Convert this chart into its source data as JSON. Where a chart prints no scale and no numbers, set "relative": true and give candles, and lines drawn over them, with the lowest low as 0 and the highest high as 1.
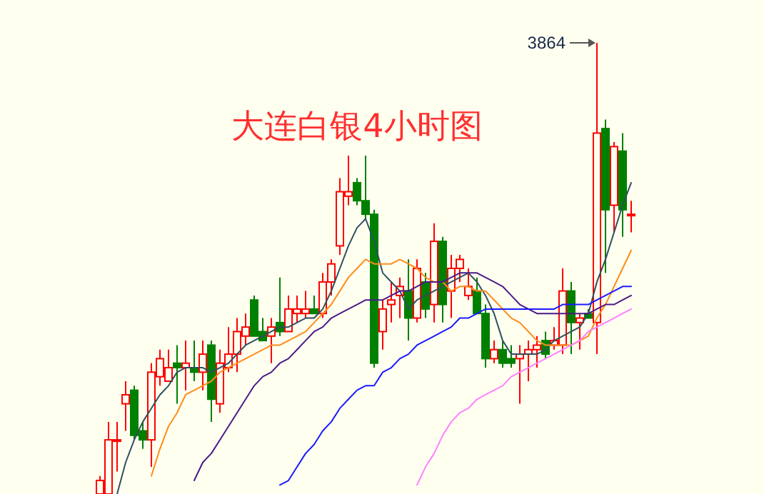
{
  "chart_data": {
    "type": "candlestick",
    "title": "大连白银4小时图",
    "relative": true,
    "categories": [
      null,
      null,
      null,
      null,
      null,
      null,
      null,
      null,
      null,
      null,
      null,
      null,
      null,
      null,
      null,
      null,
      null,
      null,
      null,
      null,
      null,
      null,
      null,
      null,
      null,
      null,
      null,
      null,
      null,
      null,
      null,
      null,
      null,
      null,
      null,
      null,
      null,
      null,
      null,
      null,
      null,
      null,
      null,
      null,
      null,
      null,
      null,
      null,
      null,
      null,
      null,
      null,
      null,
      null,
      null,
      null,
      null,
      null,
      null,
      null,
      null,
      null,
      null
    ],
    "ohlc": [
      [
        0,
        0.04,
        0,
        0.03
      ],
      [
        0,
        0.16,
        0,
        0.12
      ],
      [
        0.12,
        0.16,
        0.05,
        0.12
      ],
      [
        0.2,
        0.25,
        0.14,
        0.22
      ],
      [
        0.23,
        0.24,
        0.12,
        0.13
      ],
      [
        0.14,
        0.16,
        0.1,
        0.12
      ],
      [
        0.12,
        0.29,
        0.06,
        0.27
      ],
      [
        0.26,
        0.32,
        0.24,
        0.3
      ],
      [
        0.25,
        0.32,
        0.25,
        0.28
      ],
      [
        0.29,
        0.33,
        0.2,
        0.28
      ],
      [
        0.28,
        0.34,
        0.23,
        0.29
      ],
      [
        0.28,
        0.34,
        0.25,
        0.27
      ],
      [
        0.27,
        0.34,
        0.23,
        0.31
      ],
      [
        0.33,
        0.34,
        0.16,
        0.21
      ],
      [
        0.2,
        0.32,
        0.18,
        0.29
      ],
      [
        0.28,
        0.37,
        0.27,
        0.31
      ],
      [
        0.31,
        0.39,
        0.27,
        0.36
      ],
      [
        0.35,
        0.4,
        0.33,
        0.37
      ],
      [
        0.43,
        0.44,
        0.35,
        0.35
      ],
      [
        0.36,
        0.39,
        0.34,
        0.34
      ],
      [
        0.35,
        0.39,
        0.29,
        0.37
      ],
      [
        0.38,
        0.48,
        0.35,
        0.36
      ],
      [
        0.36,
        0.44,
        0.36,
        0.41
      ],
      [
        0.4,
        0.44,
        0.38,
        0.41
      ],
      [
        0.4,
        0.45,
        0.39,
        0.41
      ],
      [
        0.41,
        0.44,
        0.4,
        0.4
      ],
      [
        0.4,
        0.49,
        0.39,
        0.47
      ],
      [
        0.47,
        0.52,
        0.44,
        0.51
      ],
      [
        0.55,
        0.7,
        0.53,
        0.67
      ],
      [
        0.66,
        0.75,
        0.64,
        0.67
      ],
      [
        0.69,
        0.7,
        0.64,
        0.65
      ],
      [
        0.65,
        0.75,
        0.61,
        0.62
      ],
      [
        0.62,
        0.63,
        0.28,
        0.29
      ],
      [
        0.36,
        0.43,
        0.32,
        0.41
      ],
      [
        0.42,
        0.47,
        0.38,
        0.43
      ],
      [
        0.44,
        0.48,
        0.39,
        0.46
      ],
      [
        0.45,
        0.52,
        0.34,
        0.39
      ],
      [
        0.39,
        0.52,
        0.38,
        0.5
      ],
      [
        0.47,
        0.49,
        0.39,
        0.41
      ],
      [
        0.42,
        0.6,
        0.38,
        0.56
      ],
      [
        0.56,
        0.57,
        0.38,
        0.42
      ],
      [
        0.45,
        0.53,
        0.39,
        0.5
      ],
      [
        0.5,
        0.53,
        0.47,
        0.52
      ],
      [
        0.44,
        0.5,
        0.43,
        0.46
      ],
      [
        0.45,
        0.48,
        0.4,
        0.4
      ],
      [
        0.4,
        0.42,
        0.28,
        0.3
      ],
      [
        0.3,
        0.34,
        0.29,
        0.32
      ],
      [
        0.32,
        0.34,
        0.28,
        0.29
      ],
      [
        0.3,
        0.33,
        0.28,
        0.29
      ],
      [
        0.3,
        0.33,
        0.2,
        0.31
      ],
      [
        0.31,
        0.34,
        0.25,
        0.32
      ],
      [
        0.32,
        0.35,
        0.28,
        0.33
      ],
      [
        0.34,
        0.36,
        0.3,
        0.31
      ],
      [
        0.33,
        0.37,
        0.32,
        0.34
      ],
      [
        0.33,
        0.5,
        0.31,
        0.45
      ],
      [
        0.45,
        0.47,
        0.31,
        0.38
      ],
      [
        0.38,
        0.4,
        0.32,
        0.39
      ],
      [
        0.4,
        0.41,
        0.39,
        0.39
      ],
      [
        0.38,
        1,
        0.31,
        0.8
      ],
      [
        0.81,
        0.83,
        0.49,
        0.63
      ],
      [
        0.64,
        0.78,
        0.58,
        0.77
      ],
      [
        0.76,
        0.8,
        0.57,
        0.63
      ],
      [
        0.62,
        0.65,
        0.58,
        0.62
      ]
    ],
    "series": [
      {
        "type": "line",
        "color": "#2f4f5f",
        "values": [
          null,
          null,
          0,
          0.07,
          0.12,
          0.16,
          0.19,
          0.22,
          0.24,
          0.27,
          0.28,
          0.28,
          0.28,
          0.27,
          0.28,
          0.29,
          0.31,
          0.33,
          0.34,
          0.35,
          0.36,
          0.37,
          0.37,
          0.38,
          0.39,
          0.39,
          0.41,
          0.45,
          0.5,
          0.55,
          0.59,
          0.61,
          0.56,
          0.49,
          0.47,
          0.45,
          0.41,
          0.43,
          0.44,
          0.45,
          0.46,
          0.47,
          0.48,
          0.49,
          0.47,
          0.44,
          0.4,
          0.34,
          0.31,
          0.31,
          0.31,
          0.31,
          0.32,
          0.34,
          0.35,
          0.36,
          0.37,
          0.4,
          0.47,
          0.52,
          0.58,
          0.64,
          0.69
        ]
      },
      {
        "type": "line",
        "color": "#ff8c1a",
        "values": [
          null,
          null,
          null,
          null,
          null,
          null,
          0.04,
          0.1,
          0.15,
          0.18,
          0.22,
          0.23,
          0.24,
          0.25,
          0.27,
          0.28,
          0.29,
          0.3,
          0.31,
          0.32,
          0.33,
          0.33,
          0.34,
          0.35,
          0.36,
          0.38,
          0.4,
          0.42,
          0.45,
          0.48,
          0.5,
          0.52,
          0.51,
          0.51,
          0.51,
          0.52,
          0.51,
          0.5,
          0.48,
          0.47,
          0.47,
          0.45,
          0.46,
          0.46,
          0.45,
          0.45,
          0.43,
          0.41,
          0.39,
          0.38,
          0.36,
          0.34,
          0.33,
          0.33,
          0.33,
          0.33,
          0.34,
          0.35,
          0.39,
          0.42,
          0.46,
          0.5,
          0.54
        ]
      },
      {
        "type": "line",
        "color": "#4b1a8a",
        "values": [
          null,
          null,
          null,
          null,
          null,
          null,
          null,
          null,
          null,
          null,
          null,
          0.03,
          0.07,
          0.09,
          0.12,
          0.15,
          0.18,
          0.21,
          0.24,
          0.26,
          0.27,
          0.29,
          0.3,
          0.32,
          0.34,
          0.36,
          0.37,
          0.39,
          0.4,
          0.41,
          0.42,
          0.43,
          0.43,
          0.43,
          0.44,
          0.45,
          0.45,
          0.46,
          0.47,
          0.47,
          0.47,
          0.48,
          0.49,
          0.49,
          0.49,
          0.48,
          0.47,
          0.46,
          0.44,
          0.42,
          0.41,
          0.4,
          0.4,
          0.4,
          0.4,
          0.4,
          0.4,
          0.4,
          0.41,
          0.42,
          0.42,
          0.43,
          0.44
        ]
      },
      {
        "type": "line",
        "color": "#1a1aff",
        "values": [
          null,
          null,
          null,
          null,
          null,
          null,
          null,
          null,
          null,
          null,
          null,
          null,
          null,
          null,
          null,
          null,
          null,
          null,
          null,
          null,
          null,
          0.02,
          0.03,
          0.06,
          0.09,
          0.11,
          0.14,
          0.16,
          0.19,
          0.21,
          0.23,
          0.24,
          0.24,
          0.27,
          0.28,
          0.3,
          0.31,
          0.33,
          0.34,
          0.35,
          0.36,
          0.37,
          0.39,
          0.39,
          0.4,
          0.41,
          0.41,
          0.41,
          0.41,
          0.41,
          0.41,
          0.41,
          0.41,
          0.41,
          0.42,
          0.42,
          0.42,
          0.42,
          0.43,
          0.44,
          0.45,
          0.46,
          0.46
        ]
      },
      {
        "type": "line",
        "color": "#ff80ff",
        "values": [
          null,
          null,
          null,
          null,
          null,
          null,
          null,
          null,
          null,
          null,
          null,
          null,
          null,
          null,
          null,
          null,
          null,
          null,
          null,
          null,
          null,
          null,
          null,
          null,
          null,
          null,
          null,
          null,
          null,
          null,
          null,
          null,
          null,
          null,
          null,
          null,
          null,
          0.02,
          0.06,
          0.09,
          0.13,
          0.16,
          0.18,
          0.19,
          0.21,
          0.22,
          0.23,
          0.24,
          0.26,
          0.27,
          0.28,
          0.29,
          0.3,
          0.31,
          0.32,
          0.33,
          0.34,
          0.36,
          0.37,
          0.38,
          0.39,
          0.4,
          0.41
        ]
      }
    ],
    "annotations": [
      "3864"
    ]
  }
}
